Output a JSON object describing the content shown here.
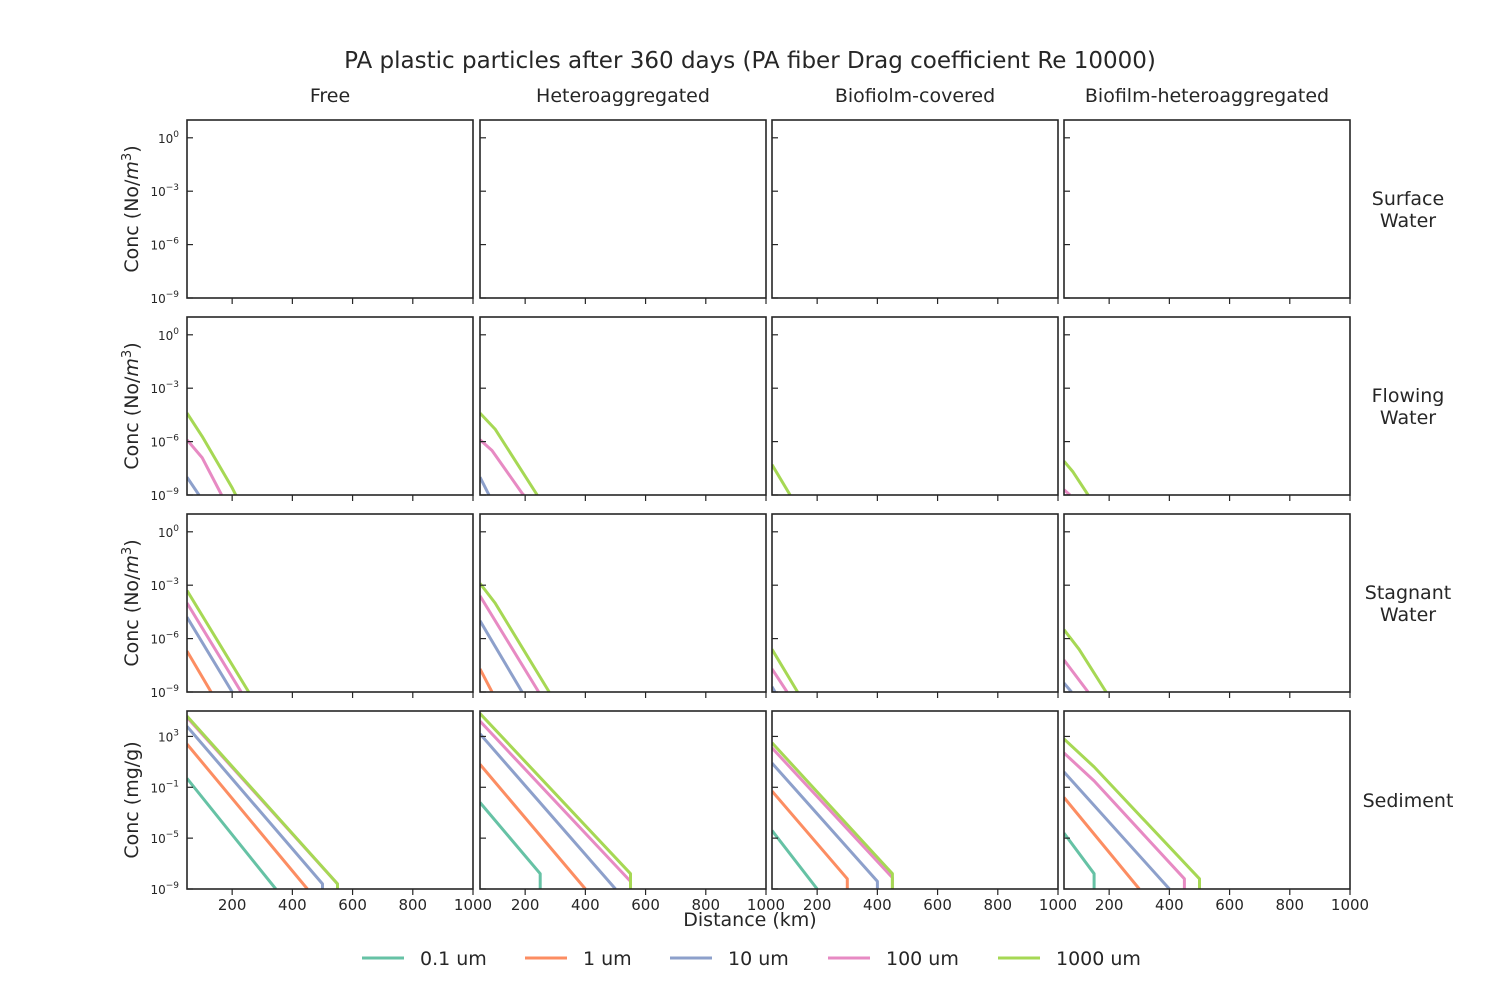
{
  "chart_data": {
    "type": "line",
    "title": "PA plastic particles after 360 days (PA fiber Drag coefficient Re 10000)",
    "xlabel": "Distance (km)",
    "xlim": [
      50,
      1000
    ],
    "x_ticks": [
      200,
      400,
      600,
      800,
      1000
    ],
    "x_tick_labels": [
      "200",
      "400",
      "600",
      "800",
      "1000"
    ],
    "y_scale": "log",
    "columns": [
      "Free",
      "Heteroaggregated",
      "Biofiolm-covered",
      "Biofilm-heteroaggregated"
    ],
    "rows": [
      {
        "label_lines": [
          "Surface",
          "Water"
        ],
        "ylabel": "Conc (No/m³)",
        "ylabel_base": "Conc (No/",
        "ylabel_var": "m",
        "ylabel_exp": "3",
        "ylabel_close": ")",
        "ylim_log10": [
          -9,
          1
        ],
        "y_ticks_log10": [
          0,
          -3,
          -6,
          -9
        ],
        "y_tick_labels": [
          {
            "base": "10",
            "exp": "0"
          },
          {
            "base": "10",
            "exp": "−3"
          },
          {
            "base": "10",
            "exp": "−6"
          },
          {
            "base": "10",
            "exp": "−9"
          }
        ]
      },
      {
        "label_lines": [
          "Flowing",
          "Water"
        ],
        "ylabel": "Conc (No/m³)",
        "ylabel_base": "Conc (No/",
        "ylabel_var": "m",
        "ylabel_exp": "3",
        "ylabel_close": ")",
        "ylim_log10": [
          -9,
          1
        ],
        "y_ticks_log10": [
          0,
          -3,
          -6,
          -9
        ],
        "y_tick_labels": [
          {
            "base": "10",
            "exp": "0"
          },
          {
            "base": "10",
            "exp": "−3"
          },
          {
            "base": "10",
            "exp": "−6"
          },
          {
            "base": "10",
            "exp": "−9"
          }
        ]
      },
      {
        "label_lines": [
          "Stagnant",
          "Water"
        ],
        "ylabel": "Conc (No/m³)",
        "ylabel_base": "Conc (No/",
        "ylabel_var": "m",
        "ylabel_exp": "3",
        "ylabel_close": ")",
        "ylim_log10": [
          -9,
          1
        ],
        "y_ticks_log10": [
          0,
          -3,
          -6,
          -9
        ],
        "y_tick_labels": [
          {
            "base": "10",
            "exp": "0"
          },
          {
            "base": "10",
            "exp": "−3"
          },
          {
            "base": "10",
            "exp": "−6"
          },
          {
            "base": "10",
            "exp": "−9"
          }
        ]
      },
      {
        "label_lines": [
          "Sediment"
        ],
        "ylabel": "Conc (mg/g)",
        "ylabel_base": "Conc (mg/g)",
        "ylabel_var": "",
        "ylabel_exp": "",
        "ylabel_close": "",
        "ylim_log10": [
          -9,
          5
        ],
        "y_ticks_log10": [
          3,
          -1,
          -5,
          -9
        ],
        "y_tick_labels": [
          {
            "base": "10",
            "exp": "3"
          },
          {
            "base": "10",
            "exp": "−1"
          },
          {
            "base": "10",
            "exp": "−5"
          },
          {
            "base": "10",
            "exp": "−9"
          }
        ]
      }
    ],
    "legend": {
      "placement": "bottom-center",
      "entries": [
        {
          "name": "0.1 um",
          "color": "#66c2a5"
        },
        {
          "name": "1 um",
          "color": "#fc8d62"
        },
        {
          "name": "10 um",
          "color": "#8da0cb"
        },
        {
          "name": "100 um",
          "color": "#e78ac3"
        },
        {
          "name": "1000 um",
          "color": "#a6d854"
        }
      ]
    },
    "panels": [
      {
        "row": 0,
        "col": 0,
        "series": []
      },
      {
        "row": 0,
        "col": 1,
        "series": []
      },
      {
        "row": 0,
        "col": 2,
        "series": []
      },
      {
        "row": 0,
        "col": 3,
        "series": []
      },
      {
        "row": 1,
        "col": 0,
        "series": [
          {
            "size": "10 um",
            "points": [
              [
                50,
                -8.0
              ],
              [
                90,
                -9.0
              ]
            ]
          },
          {
            "size": "100 um",
            "points": [
              [
                50,
                -5.9
              ],
              [
                100,
                -6.9
              ],
              [
                165,
                -9.0
              ]
            ]
          },
          {
            "size": "1000 um",
            "points": [
              [
                50,
                -4.4
              ],
              [
                100,
                -5.7
              ],
              [
                200,
                -8.6
              ],
              [
                212,
                -9.0
              ]
            ]
          }
        ]
      },
      {
        "row": 1,
        "col": 1,
        "series": [
          {
            "size": "10 um",
            "points": [
              [
                50,
                -8.0
              ],
              [
                80,
                -9.0
              ]
            ]
          },
          {
            "size": "100 um",
            "points": [
              [
                50,
                -5.9
              ],
              [
                90,
                -6.5
              ],
              [
                190,
                -8.9
              ],
              [
                195,
                -9.0
              ]
            ]
          },
          {
            "size": "1000 um",
            "points": [
              [
                50,
                -4.4
              ],
              [
                100,
                -5.3
              ],
              [
                240,
                -9.0
              ]
            ]
          }
        ]
      },
      {
        "row": 1,
        "col": 2,
        "series": [
          {
            "size": "1000 um",
            "points": [
              [
                50,
                -7.3
              ],
              [
                110,
                -9.0
              ]
            ]
          }
        ]
      },
      {
        "row": 1,
        "col": 3,
        "series": [
          {
            "size": "100 um",
            "points": [
              [
                50,
                -8.7
              ],
              [
                70,
                -9.0
              ]
            ]
          },
          {
            "size": "1000 um",
            "points": [
              [
                50,
                -7.1
              ],
              [
                80,
                -7.7
              ],
              [
                130,
                -9.0
              ]
            ]
          }
        ]
      },
      {
        "row": 2,
        "col": 0,
        "series": [
          {
            "size": "1 um",
            "points": [
              [
                50,
                -6.7
              ],
              [
                130,
                -9.0
              ]
            ]
          },
          {
            "size": "10 um",
            "points": [
              [
                50,
                -4.8
              ],
              [
                200,
                -9.0
              ]
            ]
          },
          {
            "size": "100 um",
            "points": [
              [
                50,
                -4.0
              ],
              [
                230,
                -9.0
              ]
            ]
          },
          {
            "size": "1000 um",
            "points": [
              [
                50,
                -3.3
              ],
              [
                255,
                -9.0
              ]
            ]
          }
        ]
      },
      {
        "row": 2,
        "col": 1,
        "series": [
          {
            "size": "1 um",
            "points": [
              [
                50,
                -7.7
              ],
              [
                90,
                -9.0
              ]
            ]
          },
          {
            "size": "10 um",
            "points": [
              [
                50,
                -5.0
              ],
              [
                190,
                -9.0
              ]
            ]
          },
          {
            "size": "100 um",
            "points": [
              [
                50,
                -3.6
              ],
              [
                245,
                -9.0
              ]
            ]
          },
          {
            "size": "1000 um",
            "points": [
              [
                50,
                -2.9
              ],
              [
                100,
                -4.0
              ],
              [
                280,
                -9.0
              ]
            ]
          }
        ]
      },
      {
        "row": 2,
        "col": 2,
        "series": [
          {
            "size": "10 um",
            "points": [
              [
                50,
                -8.7
              ],
              [
                60,
                -9.0
              ]
            ]
          },
          {
            "size": "100 um",
            "points": [
              [
                50,
                -7.7
              ],
              [
                100,
                -9.0
              ]
            ]
          },
          {
            "size": "1000 um",
            "points": [
              [
                50,
                -6.6
              ],
              [
                135,
                -9.0
              ]
            ]
          }
        ]
      },
      {
        "row": 2,
        "col": 3,
        "series": [
          {
            "size": "10 um",
            "points": [
              [
                50,
                -8.5
              ],
              [
                75,
                -9.0
              ]
            ]
          },
          {
            "size": "100 um",
            "points": [
              [
                50,
                -7.2
              ],
              [
                130,
                -9.0
              ]
            ]
          },
          {
            "size": "1000 um",
            "points": [
              [
                50,
                -5.5
              ],
              [
                100,
                -6.6
              ],
              [
                190,
                -9.0
              ]
            ]
          }
        ]
      },
      {
        "row": 3,
        "col": 0,
        "series": [
          {
            "size": "0.1 um",
            "points": [
              [
                50,
                -0.3
              ],
              [
                345,
                -9.0
              ]
            ]
          },
          {
            "size": "1 um",
            "points": [
              [
                50,
                2.4
              ],
              [
                450,
                -9.0
              ]
            ]
          },
          {
            "size": "10 um",
            "points": [
              [
                50,
                3.8
              ],
              [
                500,
                -8.6
              ],
              [
                500,
                -9.0
              ]
            ]
          },
          {
            "size": "100 um",
            "points": [
              [
                50,
                4.5
              ],
              [
                550,
                -8.6
              ],
              [
                550,
                -9.0
              ]
            ]
          },
          {
            "size": "1000 um",
            "points": [
              [
                50,
                4.6
              ],
              [
                550,
                -8.6
              ],
              [
                550,
                -9.0
              ]
            ]
          }
        ]
      },
      {
        "row": 3,
        "col": 1,
        "series": [
          {
            "size": "0.1 um",
            "points": [
              [
                50,
                -2.2
              ],
              [
                250,
                -7.8
              ],
              [
                250,
                -9.0
              ]
            ]
          },
          {
            "size": "1 um",
            "points": [
              [
                50,
                0.8
              ],
              [
                400,
                -9.0
              ]
            ]
          },
          {
            "size": "10 um",
            "points": [
              [
                50,
                3.2
              ],
              [
                500,
                -9.0
              ]
            ]
          },
          {
            "size": "100 um",
            "points": [
              [
                50,
                4.2
              ],
              [
                550,
                -8.4
              ],
              [
                550,
                -9.0
              ]
            ]
          },
          {
            "size": "1000 um",
            "points": [
              [
                50,
                4.8
              ],
              [
                550,
                -7.8
              ],
              [
                550,
                -9.0
              ]
            ]
          }
        ]
      },
      {
        "row": 3,
        "col": 2,
        "series": [
          {
            "size": "0.1 um",
            "points": [
              [
                50,
                -4.4
              ],
              [
                200,
                -9.0
              ]
            ]
          },
          {
            "size": "1 um",
            "points": [
              [
                50,
                -1.3
              ],
              [
                300,
                -8.2
              ],
              [
                300,
                -9.0
              ]
            ]
          },
          {
            "size": "10 um",
            "points": [
              [
                50,
                0.9
              ],
              [
                400,
                -8.4
              ],
              [
                400,
                -9.0
              ]
            ]
          },
          {
            "size": "100 um",
            "points": [
              [
                50,
                2.1
              ],
              [
                450,
                -8.1
              ],
              [
                450,
                -9.0
              ]
            ]
          },
          {
            "size": "1000 um",
            "points": [
              [
                50,
                2.5
              ],
              [
                450,
                -7.8
              ],
              [
                450,
                -9.0
              ]
            ]
          }
        ]
      },
      {
        "row": 3,
        "col": 3,
        "series": [
          {
            "size": "0.1 um",
            "points": [
              [
                50,
                -4.6
              ],
              [
                150,
                -7.8
              ],
              [
                150,
                -9.0
              ]
            ]
          },
          {
            "size": "1 um",
            "points": [
              [
                50,
                -1.8
              ],
              [
                300,
                -9.0
              ]
            ]
          },
          {
            "size": "10 um",
            "points": [
              [
                50,
                0.2
              ],
              [
                400,
                -9.0
              ]
            ]
          },
          {
            "size": "100 um",
            "points": [
              [
                50,
                1.7
              ],
              [
                150,
                -0.5
              ],
              [
                450,
                -8.2
              ],
              [
                450,
                -9.0
              ]
            ]
          },
          {
            "size": "1000 um",
            "points": [
              [
                50,
                2.8
              ],
              [
                150,
                0.6
              ],
              [
                500,
                -8.2
              ],
              [
                500,
                -9.0
              ]
            ]
          }
        ]
      }
    ]
  }
}
